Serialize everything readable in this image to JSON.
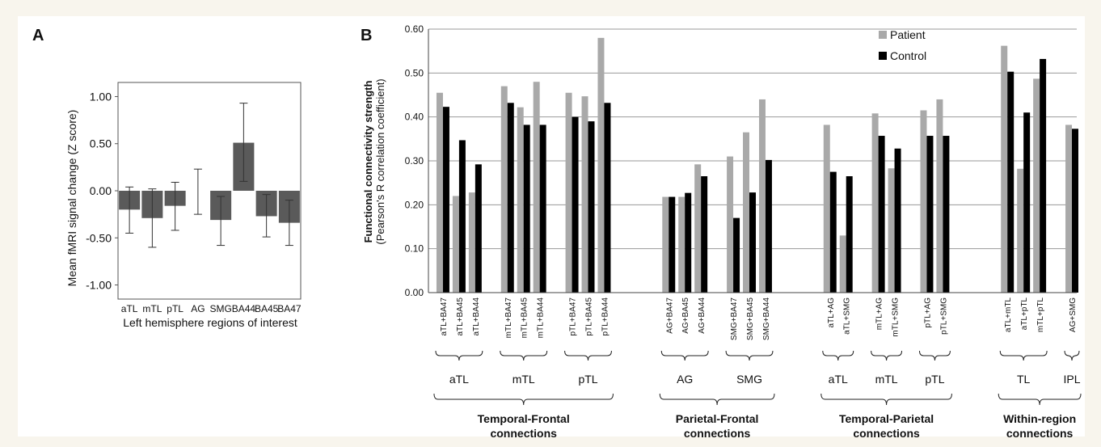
{
  "colors": {
    "page_bg": "#f8f5ed",
    "panel_a_bar": "#5a5a5a",
    "patient": "#a9a9a9",
    "control": "#000000",
    "grid": "#9a9a9a"
  },
  "chart_data": [
    {
      "type": "bar",
      "panel_letter": "A",
      "title": "",
      "xlabel": "Left hemisphere regions of interest",
      "ylabel": "Mean fMRI signal change (Z score)",
      "ylim": [
        -1.15,
        1.15
      ],
      "yticks": [
        1.0,
        0.5,
        0.0,
        -0.5,
        -1.0
      ],
      "ytick_labels": [
        "1.00",
        "0.50",
        "0.00",
        "-0.50",
        "-1.00"
      ],
      "grid": false,
      "categories": [
        "aTL",
        "mTL",
        "pTL",
        "AG",
        "SMG",
        "BA44",
        "BA45",
        "BA47"
      ],
      "values": [
        -0.2,
        -0.29,
        -0.16,
        0.0,
        -0.31,
        0.51,
        -0.27,
        -0.34
      ],
      "error_low": [
        -0.45,
        -0.6,
        -0.42,
        -0.25,
        -0.58,
        0.1,
        -0.49,
        -0.58
      ],
      "error_high": [
        0.04,
        0.02,
        0.09,
        0.23,
        -0.06,
        0.93,
        -0.04,
        -0.1
      ]
    },
    {
      "type": "bar",
      "panel_letter": "B",
      "title": "",
      "xlabel": "",
      "ylabel": "Functional connectivity strength",
      "ylabel_sub": "(Pearson's R correlation coefficient)",
      "ylim": [
        0,
        0.6
      ],
      "yticks": [
        0,
        0.1,
        0.2,
        0.3,
        0.4,
        0.5,
        0.6
      ],
      "ytick_labels": [
        "0.00",
        "0.10",
        "0.20",
        "0.30",
        "0.40",
        "0.50",
        "0.60"
      ],
      "grid": true,
      "legend_position": "top-center",
      "series": [
        {
          "name": "Patient",
          "values": [
            0.455,
            0.22,
            0.228,
            0.47,
            0.422,
            0.48,
            0.455,
            0.447,
            0.58,
            0.218,
            0.218,
            0.292,
            0.31,
            0.365,
            0.44,
            0.382,
            0.13,
            0.408,
            0.283,
            0.415,
            0.44,
            0.562,
            0.282,
            0.487,
            0.382
          ]
        },
        {
          "name": "Control",
          "values": [
            0.423,
            0.347,
            0.292,
            0.432,
            0.382,
            0.382,
            0.4,
            0.39,
            0.432,
            0.218,
            0.227,
            0.265,
            0.17,
            0.228,
            0.302,
            0.275,
            0.265,
            0.357,
            0.328,
            0.357,
            0.357,
            0.503,
            0.41,
            0.532,
            0.373
          ]
        }
      ],
      "categories": [
        "aTL+BA47",
        "aTL+BA45",
        "aTL+BA44",
        "mTL+BA47",
        "mTL+BA45",
        "mTL+BA44",
        "pTL+BA47",
        "pTL+BA45",
        "pTL+BA44",
        "AG+BA47",
        "AG+BA45",
        "AG+BA44",
        "SMG+BA47",
        "SMG+BA45",
        "SMG+BA44",
        "aTL+AG",
        "aTL+SMG",
        "mTL+AG",
        "mTL+SMG",
        "pTL+AG",
        "pTL+SMG",
        "aTL+mTL",
        "aTL+pTL",
        "mTL+pTL",
        "AG+SMG"
      ],
      "subgroups": [
        {
          "label": "aTL",
          "start": 0,
          "end": 2
        },
        {
          "label": "mTL",
          "start": 3,
          "end": 5
        },
        {
          "label": "pTL",
          "start": 6,
          "end": 8
        },
        {
          "label": "AG",
          "start": 9,
          "end": 11
        },
        {
          "label": "SMG",
          "start": 12,
          "end": 14
        },
        {
          "label": "aTL",
          "start": 15,
          "end": 16
        },
        {
          "label": "mTL",
          "start": 17,
          "end": 18
        },
        {
          "label": "pTL",
          "start": 19,
          "end": 20
        },
        {
          "label": "TL",
          "start": 21,
          "end": 23
        },
        {
          "label": "IPL",
          "start": 24,
          "end": 24
        }
      ],
      "groups": [
        {
          "line1": "Temporal-Frontal",
          "line2": "connections",
          "start": 0,
          "end": 8
        },
        {
          "line1": "Parietal-Frontal",
          "line2": "connections",
          "start": 9,
          "end": 14
        },
        {
          "line1": "Temporal-Parietal",
          "line2": "connections",
          "start": 15,
          "end": 20
        },
        {
          "line1": "Within-region",
          "line2": "connections",
          "start": 21,
          "end": 24
        }
      ]
    }
  ]
}
